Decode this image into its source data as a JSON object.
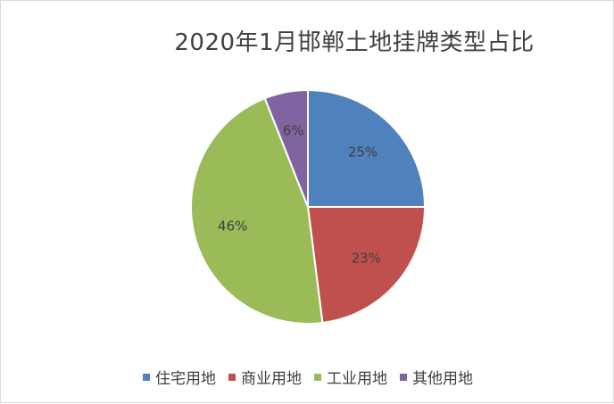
{
  "chart_data": {
    "type": "pie",
    "title": "2020年1月邯郸土地挂牌类型占比",
    "categories": [
      "住宅用地",
      "商业用地",
      "工业用地",
      "其他用地"
    ],
    "values": [
      25,
      23,
      46,
      6
    ],
    "labels": [
      "25%",
      "23%",
      "46%",
      "6%"
    ],
    "colors": [
      "#4f81bd",
      "#c0504d",
      "#9bbb59",
      "#8064a2"
    ],
    "legend": "bottom",
    "start": "top, clockwise"
  }
}
